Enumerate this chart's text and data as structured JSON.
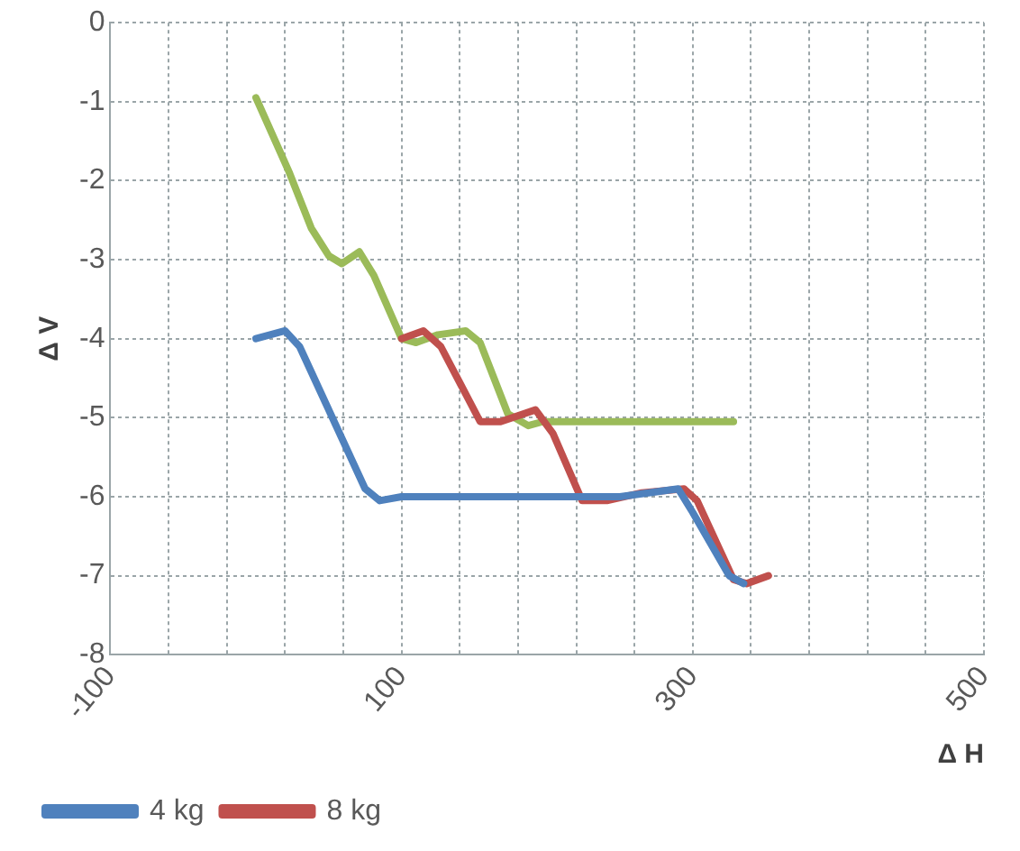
{
  "chart_data": {
    "type": "line",
    "xlabel": "Δ H",
    "ylabel": "Δ V",
    "xlim": [
      -100,
      500
    ],
    "ylim": [
      -8,
      0
    ],
    "xticks": [
      -100,
      {
        "value": -60,
        "label": null
      },
      {
        "value": -20,
        "label": null
      },
      {
        "value": 20,
        "label": null
      },
      {
        "value": 60,
        "label": null
      },
      100,
      {
        "value": 140,
        "label": null
      },
      {
        "value": 180,
        "label": null
      },
      {
        "value": 220,
        "label": null
      },
      {
        "value": 260,
        "label": null
      },
      300,
      {
        "value": 340,
        "label": null
      },
      {
        "value": 380,
        "label": null
      },
      {
        "value": 420,
        "label": null
      },
      {
        "value": 460,
        "label": null
      },
      500
    ],
    "yticks": [
      -8,
      -7,
      -6,
      -5,
      -4,
      -3,
      -2,
      -1,
      0
    ],
    "grid": true,
    "legend": "bottom",
    "marker": "none",
    "line_style": "solid",
    "series": [
      {
        "name": "4 kg",
        "color": "#4f81bd",
        "x": [
          0,
          20,
          30,
          75,
          85,
          100,
          250,
          290,
          300,
          325,
          335
        ],
        "values": [
          -4,
          -3.9,
          -4.1,
          -5.9,
          -6.05,
          -6,
          -6,
          -5.9,
          -6.2,
          -7,
          -7.1
        ]
      },
      {
        "name": "8 kg",
        "color": "#c0504d",
        "x": [
          100,
          115,
          127,
          154,
          168,
          192,
          204,
          224,
          241,
          265,
          294,
          303,
          328,
          337,
          352
        ],
        "values": [
          -4,
          -3.9,
          -4.1,
          -5.05,
          -5.05,
          -4.9,
          -5.2,
          -6.05,
          -6.05,
          -5.95,
          -5.9,
          -6.05,
          -7.05,
          -7.1,
          -7
        ]
      },
      {
        "color": "#9bbb59",
        "x": [
          0,
          23,
          38,
          50,
          59,
          71,
          81,
          100,
          110,
          125,
          144,
          154,
          173,
          187,
          197,
          328
        ],
        "values": [
          -0.95,
          -1.9,
          -2.6,
          -2.95,
          -3.05,
          -2.9,
          -3.2,
          -4,
          -4.05,
          -3.95,
          -3.9,
          -4.05,
          -4.95,
          -5.1,
          -5.05,
          -5.05
        ]
      }
    ]
  }
}
